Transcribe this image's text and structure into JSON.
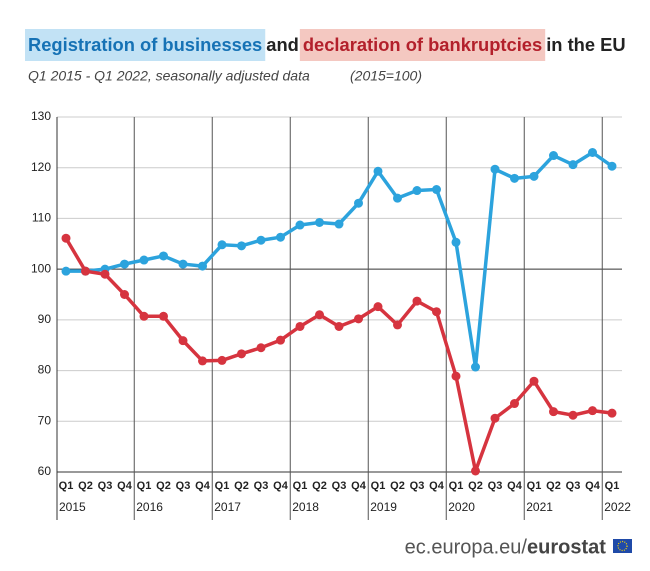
{
  "chart_data": {
    "type": "line",
    "title_join": "and",
    "title_end": "in the EU",
    "subtitle": "Q1 2015 - Q1 2022, seasonally adjusted data",
    "index_note": "(2015=100)",
    "source": "ec.europa.eu/",
    "source_brand": "eurostat",
    "categories": [
      "Q1",
      "Q2",
      "Q3",
      "Q4",
      "Q1",
      "Q2",
      "Q3",
      "Q4",
      "Q1",
      "Q2",
      "Q3",
      "Q4",
      "Q1",
      "Q2",
      "Q3",
      "Q4",
      "Q1",
      "Q2",
      "Q3",
      "Q4",
      "Q1",
      "Q2",
      "Q3",
      "Q4",
      "Q1",
      "Q2",
      "Q3",
      "Q4",
      "Q1"
    ],
    "years": [
      "2015",
      "2016",
      "2017",
      "2018",
      "2019",
      "2020",
      "2021",
      "2022"
    ],
    "series": [
      {
        "name": "Registration of businesses",
        "color": "#2ca3dd",
        "highlight": "#c2e2f5",
        "values": [
          99.6,
          99.6,
          100,
          101,
          101.8,
          102.6,
          101,
          100.6,
          104.8,
          104.6,
          105.7,
          106.3,
          108.7,
          109.2,
          108.9,
          113,
          119.3,
          114,
          115.5,
          115.7,
          105.3,
          80.7,
          119.7,
          117.9,
          118.3,
          122.4,
          120.6,
          123,
          120.3
        ]
      },
      {
        "name": "declaration of bankruptcies",
        "color": "#d6343f",
        "highlight": "#f4c8c1",
        "values": [
          106.1,
          99.6,
          99,
          95,
          90.7,
          90.7,
          85.9,
          81.9,
          82,
          83.3,
          84.5,
          86,
          88.7,
          91,
          88.7,
          90.2,
          92.6,
          89,
          93.7,
          91.6,
          78.9,
          60.2,
          70.6,
          73.5,
          77.9,
          71.9,
          71.2,
          72.1,
          71.6
        ]
      }
    ],
    "ylim": [
      60,
      130
    ],
    "yticks": [
      60,
      70,
      80,
      90,
      100,
      110,
      120,
      130
    ],
    "reference_line": 100,
    "grid": true
  }
}
